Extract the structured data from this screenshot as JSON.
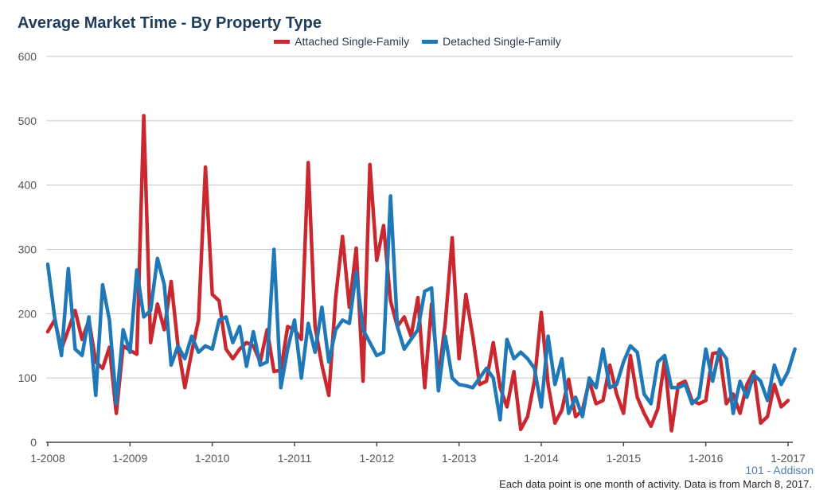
{
  "chart_data": {
    "type": "line",
    "title": "Average Market Time - By Property Type",
    "ylim": [
      0,
      600
    ],
    "yticks": [
      0,
      100,
      200,
      300,
      400,
      500,
      600
    ],
    "xticks": [
      "1-2008",
      "1-2009",
      "1-2010",
      "1-2011",
      "1-2012",
      "1-2013",
      "1-2014",
      "1-2015",
      "1-2016",
      "1-2017"
    ],
    "x_start": "1-2008",
    "x_step": "1 month",
    "grid": true,
    "legend_position": "top-center",
    "series": [
      {
        "name": "Attached Single-Family",
        "color": "#c8282e",
        "values": [
          172,
          190,
          145,
          175,
          205,
          160,
          190,
          125,
          115,
          148,
          45,
          150,
          143,
          137,
          508,
          155,
          215,
          175,
          250,
          150,
          85,
          140,
          190,
          428,
          230,
          220,
          145,
          130,
          145,
          155,
          150,
          125,
          175,
          110,
          112,
          180,
          175,
          160,
          435,
          180,
          120,
          73,
          225,
          320,
          210,
          302,
          95,
          432,
          283,
          337,
          220,
          180,
          195,
          165,
          225,
          85,
          215,
          100,
          185,
          318,
          130,
          230,
          165,
          90,
          95,
          155,
          85,
          55,
          110,
          20,
          40,
          95,
          202,
          90,
          30,
          50,
          98,
          40,
          50,
          95,
          60,
          65,
          120,
          75,
          45,
          135,
          70,
          45,
          25,
          52,
          128,
          18,
          90,
          95,
          65,
          60,
          65,
          138,
          140,
          60,
          75,
          45,
          90,
          110,
          30,
          40,
          90,
          55,
          65
        ]
      },
      {
        "name": "Detached Single-Family",
        "color": "#1f78b8",
        "values": [
          277,
          195,
          135,
          270,
          145,
          135,
          195,
          73,
          245,
          190,
          60,
          175,
          140,
          268,
          195,
          205,
          286,
          245,
          120,
          150,
          130,
          165,
          140,
          150,
          145,
          190,
          195,
          155,
          180,
          118,
          172,
          120,
          125,
          300,
          85,
          145,
          190,
          100,
          185,
          140,
          210,
          125,
          175,
          190,
          185,
          265,
          175,
          155,
          135,
          140,
          383,
          180,
          145,
          160,
          175,
          235,
          240,
          80,
          165,
          100,
          90,
          88,
          85,
          100,
          115,
          100,
          35,
          160,
          130,
          140,
          130,
          115,
          55,
          165,
          90,
          130,
          45,
          70,
          40,
          100,
          85,
          145,
          85,
          90,
          125,
          150,
          140,
          75,
          60,
          125,
          135,
          85,
          85,
          90,
          60,
          70,
          145,
          95,
          145,
          130,
          45,
          95,
          70,
          105,
          95,
          65,
          120,
          90,
          110,
          145
        ]
      }
    ],
    "footer_region": "101 - Addison",
    "footer_note": "Each data point is one month of activity. Data is from March 8, 2017."
  }
}
